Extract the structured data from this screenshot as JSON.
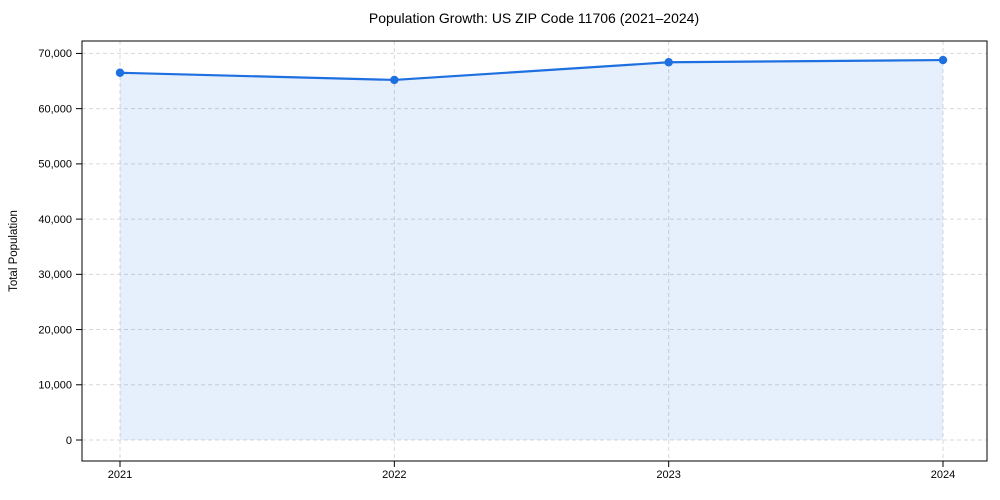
{
  "chart_data": {
    "type": "line",
    "title": "Population Growth: US ZIP Code 11706 (2021–2024)",
    "xlabel": "",
    "ylabel": "Total Population",
    "x": [
      "2021",
      "2022",
      "2023",
      "2024"
    ],
    "series": [
      {
        "name": "Total Population",
        "values": [
          66500,
          65200,
          68400,
          68800
        ]
      }
    ],
    "y_ticks": [
      0,
      10000,
      20000,
      30000,
      40000,
      50000,
      60000,
      70000
    ],
    "y_tick_labels": [
      "0",
      "10,000",
      "20,000",
      "30,000",
      "40,000",
      "50,000",
      "60,000",
      "70,000"
    ],
    "ylim": [
      -3800,
      72250
    ],
    "grid": true,
    "grid_style": "dashed",
    "legend_position": "none",
    "area_fill": true,
    "marker": "circle",
    "colors": {
      "line": "#1e6fe0",
      "marker": "#1e6fe0",
      "area_fill": "rgba(30,111,224,0.11)",
      "grid": "#d7d7d7",
      "axis": "#000000",
      "text": "#000000",
      "background": "#ffffff"
    }
  }
}
